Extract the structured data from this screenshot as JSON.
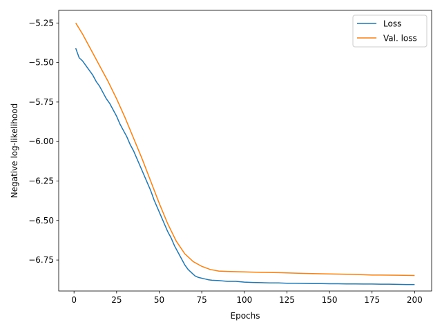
{
  "chart_data": {
    "type": "line",
    "xlabel": "Epochs",
    "ylabel": "Negative log-likelihood",
    "xlim": [
      -9,
      210
    ],
    "ylim": [
      -6.946,
      -5.17
    ],
    "xticks": [
      0,
      25,
      50,
      75,
      100,
      125,
      150,
      175,
      200
    ],
    "xtick_labels": [
      "0",
      "25",
      "50",
      "75",
      "100",
      "125",
      "150",
      "175",
      "200"
    ],
    "yticks": [
      -6.75,
      -6.5,
      -6.25,
      -6.0,
      -5.75,
      -5.5,
      -5.25
    ],
    "ytick_labels": [
      "−6.75",
      "−6.50",
      "−6.25",
      "−6.00",
      "−5.75",
      "−5.50",
      "−5.25"
    ],
    "grid": false,
    "legend_position": "top-right",
    "series": [
      {
        "name": "Loss",
        "color": "#1f77b4",
        "x": [
          1,
          3,
          5,
          7,
          9,
          11,
          13,
          15,
          17,
          19,
          21,
          23,
          25,
          27,
          29,
          31,
          33,
          35,
          37,
          39,
          41,
          43,
          45,
          47,
          49,
          51,
          53,
          55,
          57,
          59,
          61,
          63,
          65,
          67,
          69,
          71,
          73,
          75,
          77,
          79,
          81,
          85,
          90,
          95,
          100,
          105,
          110,
          115,
          120,
          125,
          130,
          135,
          140,
          145,
          150,
          155,
          160,
          165,
          170,
          175,
          180,
          185,
          190,
          195,
          200
        ],
        "y": [
          -5.41,
          -5.47,
          -5.49,
          -5.52,
          -5.55,
          -5.58,
          -5.62,
          -5.65,
          -5.69,
          -5.73,
          -5.76,
          -5.8,
          -5.84,
          -5.89,
          -5.93,
          -5.97,
          -6.02,
          -6.06,
          -6.11,
          -6.16,
          -6.21,
          -6.26,
          -6.31,
          -6.37,
          -6.42,
          -6.47,
          -6.52,
          -6.57,
          -6.61,
          -6.66,
          -6.7,
          -6.74,
          -6.78,
          -6.81,
          -6.83,
          -6.85,
          -6.86,
          -6.865,
          -6.87,
          -6.875,
          -6.878,
          -6.88,
          -6.885,
          -6.885,
          -6.89,
          -6.892,
          -6.893,
          -6.895,
          -6.895,
          -6.897,
          -6.897,
          -6.898,
          -6.899,
          -6.899,
          -6.9,
          -6.9,
          -6.901,
          -6.901,
          -6.902,
          -6.902,
          -6.903,
          -6.903,
          -6.904,
          -6.905,
          -6.905
        ]
      },
      {
        "name": "Val. loss",
        "color": "#ff7f0e",
        "x": [
          1,
          5,
          10,
          15,
          20,
          25,
          30,
          35,
          40,
          45,
          50,
          55,
          60,
          65,
          70,
          75,
          80,
          85,
          90,
          100,
          110,
          120,
          130,
          140,
          150,
          160,
          170,
          175,
          180,
          190,
          200
        ],
        "y": [
          -5.25,
          -5.32,
          -5.42,
          -5.52,
          -5.62,
          -5.73,
          -5.85,
          -5.98,
          -6.11,
          -6.25,
          -6.39,
          -6.52,
          -6.63,
          -6.71,
          -6.76,
          -6.79,
          -6.81,
          -6.82,
          -6.822,
          -6.825,
          -6.828,
          -6.83,
          -6.833,
          -6.836,
          -6.838,
          -6.84,
          -6.843,
          -6.845,
          -6.845,
          -6.846,
          -6.848
        ]
      }
    ]
  }
}
